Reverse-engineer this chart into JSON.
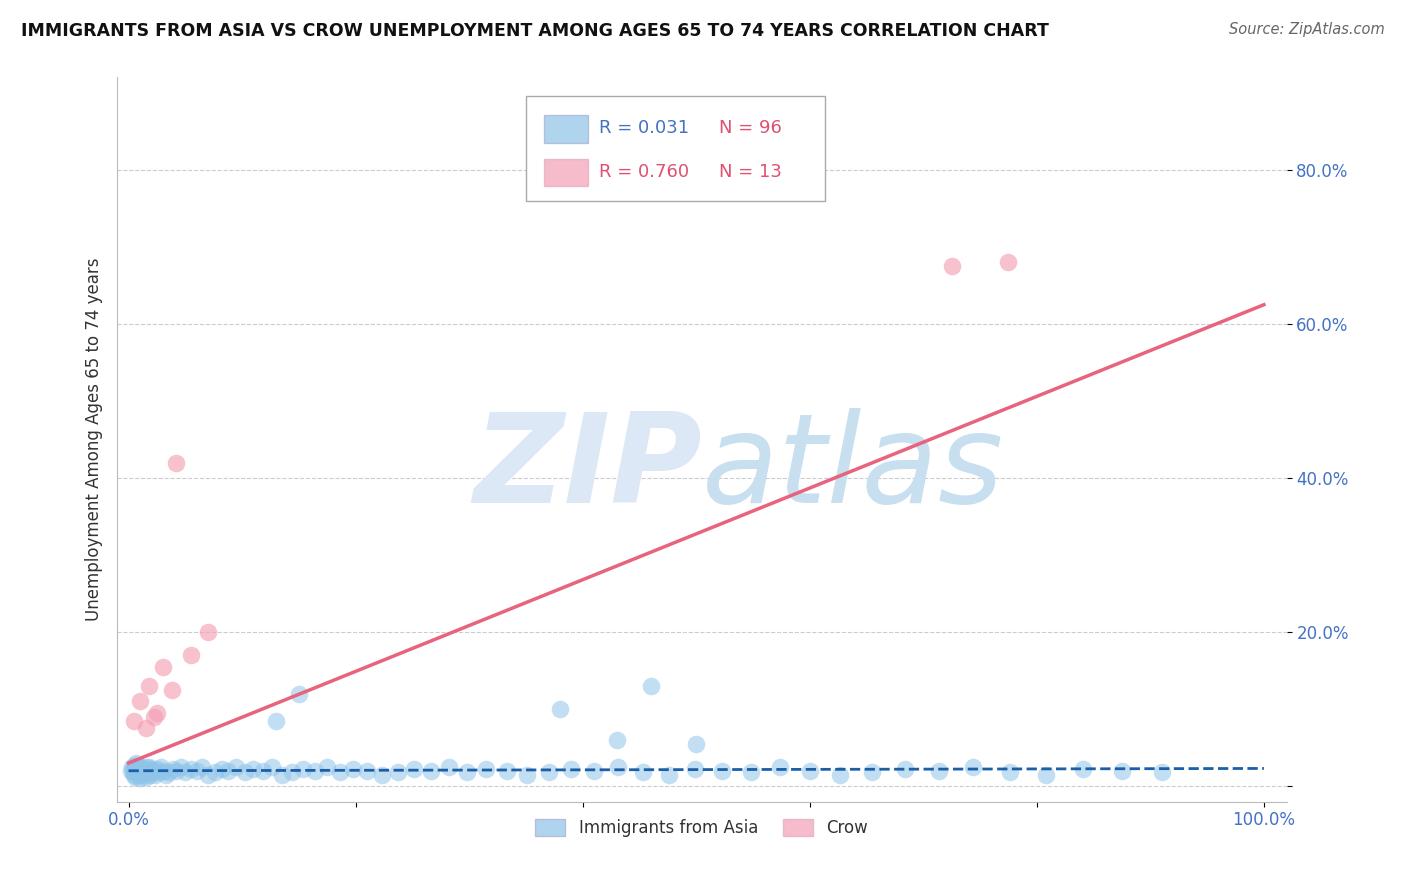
{
  "title": "IMMIGRANTS FROM ASIA VS CROW UNEMPLOYMENT AMONG AGES 65 TO 74 YEARS CORRELATION CHART",
  "source": "Source: ZipAtlas.com",
  "ylabel": "Unemployment Among Ages 65 to 74 years",
  "xlim": [
    -0.01,
    1.02
  ],
  "ylim": [
    -0.02,
    0.92
  ],
  "xticks": [
    0.0,
    0.2,
    0.4,
    0.6,
    0.8,
    1.0
  ],
  "xticklabels": [
    "0.0%",
    "",
    "",
    "",
    "",
    "100.0%"
  ],
  "yticks": [
    0.0,
    0.2,
    0.4,
    0.6,
    0.8
  ],
  "yticklabels": [
    "",
    "20.0%",
    "40.0%",
    "60.0%",
    "80.0%"
  ],
  "legend1_label": "Immigrants from Asia",
  "legend2_label": "Crow",
  "R_asia": 0.031,
  "N_asia": 96,
  "R_crow": 0.76,
  "N_crow": 13,
  "blue_color": "#8ec4e8",
  "pink_color": "#f4a0b5",
  "blue_line_color": "#1a5fa8",
  "pink_line_color": "#e8637d",
  "background_color": "#ffffff",
  "watermark_color": "#dce8f5",
  "grid_color": "#cccccc",
  "asia_x": [
    0.002,
    0.003,
    0.004,
    0.005,
    0.005,
    0.006,
    0.006,
    0.007,
    0.007,
    0.008,
    0.008,
    0.009,
    0.009,
    0.01,
    0.01,
    0.011,
    0.012,
    0.012,
    0.013,
    0.014,
    0.015,
    0.015,
    0.016,
    0.017,
    0.018,
    0.019,
    0.02,
    0.021,
    0.022,
    0.023,
    0.025,
    0.027,
    0.029,
    0.031,
    0.033,
    0.036,
    0.039,
    0.042,
    0.046,
    0.05,
    0.055,
    0.06,
    0.065,
    0.07,
    0.076,
    0.082,
    0.088,
    0.095,
    0.103,
    0.11,
    0.118,
    0.126,
    0.135,
    0.144,
    0.154,
    0.164,
    0.175,
    0.186,
    0.198,
    0.21,
    0.223,
    0.237,
    0.251,
    0.266,
    0.282,
    0.298,
    0.315,
    0.333,
    0.351,
    0.37,
    0.39,
    0.41,
    0.431,
    0.453,
    0.476,
    0.499,
    0.523,
    0.548,
    0.574,
    0.6,
    0.627,
    0.655,
    0.684,
    0.714,
    0.744,
    0.776,
    0.808,
    0.841,
    0.875,
    0.91,
    0.13,
    0.15,
    0.38,
    0.43,
    0.46,
    0.5
  ],
  "asia_y": [
    0.02,
    0.025,
    0.018,
    0.022,
    0.015,
    0.028,
    0.012,
    0.02,
    0.03,
    0.018,
    0.025,
    0.015,
    0.022,
    0.018,
    0.01,
    0.025,
    0.02,
    0.015,
    0.022,
    0.018,
    0.025,
    0.012,
    0.02,
    0.018,
    0.025,
    0.015,
    0.022,
    0.018,
    0.02,
    0.015,
    0.022,
    0.018,
    0.025,
    0.02,
    0.015,
    0.018,
    0.022,
    0.02,
    0.025,
    0.018,
    0.022,
    0.02,
    0.025,
    0.015,
    0.018,
    0.022,
    0.02,
    0.025,
    0.018,
    0.022,
    0.02,
    0.025,
    0.015,
    0.018,
    0.022,
    0.02,
    0.025,
    0.018,
    0.022,
    0.02,
    0.015,
    0.018,
    0.022,
    0.02,
    0.025,
    0.018,
    0.022,
    0.02,
    0.015,
    0.018,
    0.022,
    0.02,
    0.025,
    0.018,
    0.015,
    0.022,
    0.02,
    0.018,
    0.025,
    0.02,
    0.015,
    0.018,
    0.022,
    0.02,
    0.025,
    0.018,
    0.015,
    0.022,
    0.02,
    0.018,
    0.085,
    0.12,
    0.1,
    0.06,
    0.13,
    0.055
  ],
  "crow_x": [
    0.005,
    0.01,
    0.015,
    0.018,
    0.022,
    0.025,
    0.03,
    0.038,
    0.042,
    0.055,
    0.07,
    0.725,
    0.775
  ],
  "crow_y": [
    0.085,
    0.11,
    0.075,
    0.13,
    0.09,
    0.095,
    0.155,
    0.125,
    0.42,
    0.17,
    0.2,
    0.675,
    0.68
  ],
  "blue_trendline_x": [
    0.0,
    1.0
  ],
  "blue_trendline_y": [
    0.02,
    0.023
  ],
  "pink_trendline_x": [
    0.0,
    1.0
  ],
  "pink_trendline_y": [
    0.03,
    0.625
  ]
}
